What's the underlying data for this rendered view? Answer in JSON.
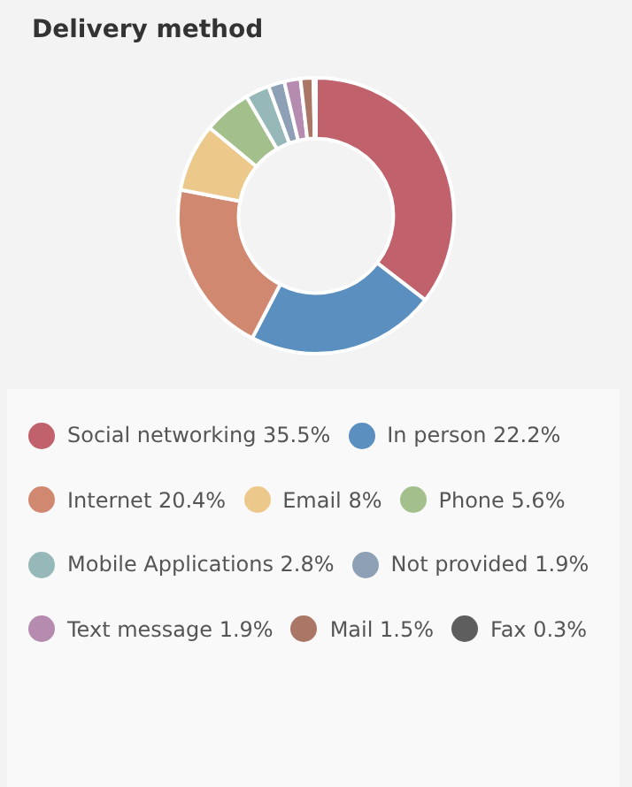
{
  "chart_data": {
    "type": "donut",
    "title": "Delivery method",
    "categories": [
      "Social networking",
      "In person",
      "Internet",
      "Email",
      "Phone",
      "Mobile Applications",
      "Not provided",
      "Text message",
      "Mail",
      "Fax"
    ],
    "values": [
      35.5,
      22.2,
      20.4,
      8,
      5.6,
      2.8,
      1.9,
      1.9,
      1.5,
      0.3
    ],
    "value_labels": [
      "35.5%",
      "22.2%",
      "20.4%",
      "8%",
      "5.6%",
      "2.8%",
      "1.9%",
      "1.9%",
      "1.5%",
      "0.3%"
    ],
    "colors": [
      "#c0616b",
      "#5b8fc0",
      "#d18870",
      "#ecc98a",
      "#a3bf8c",
      "#97b8b8",
      "#8ea0b5",
      "#b68bb0",
      "#aa7766",
      "#5e5e5e"
    ],
    "legend": "bottom"
  }
}
